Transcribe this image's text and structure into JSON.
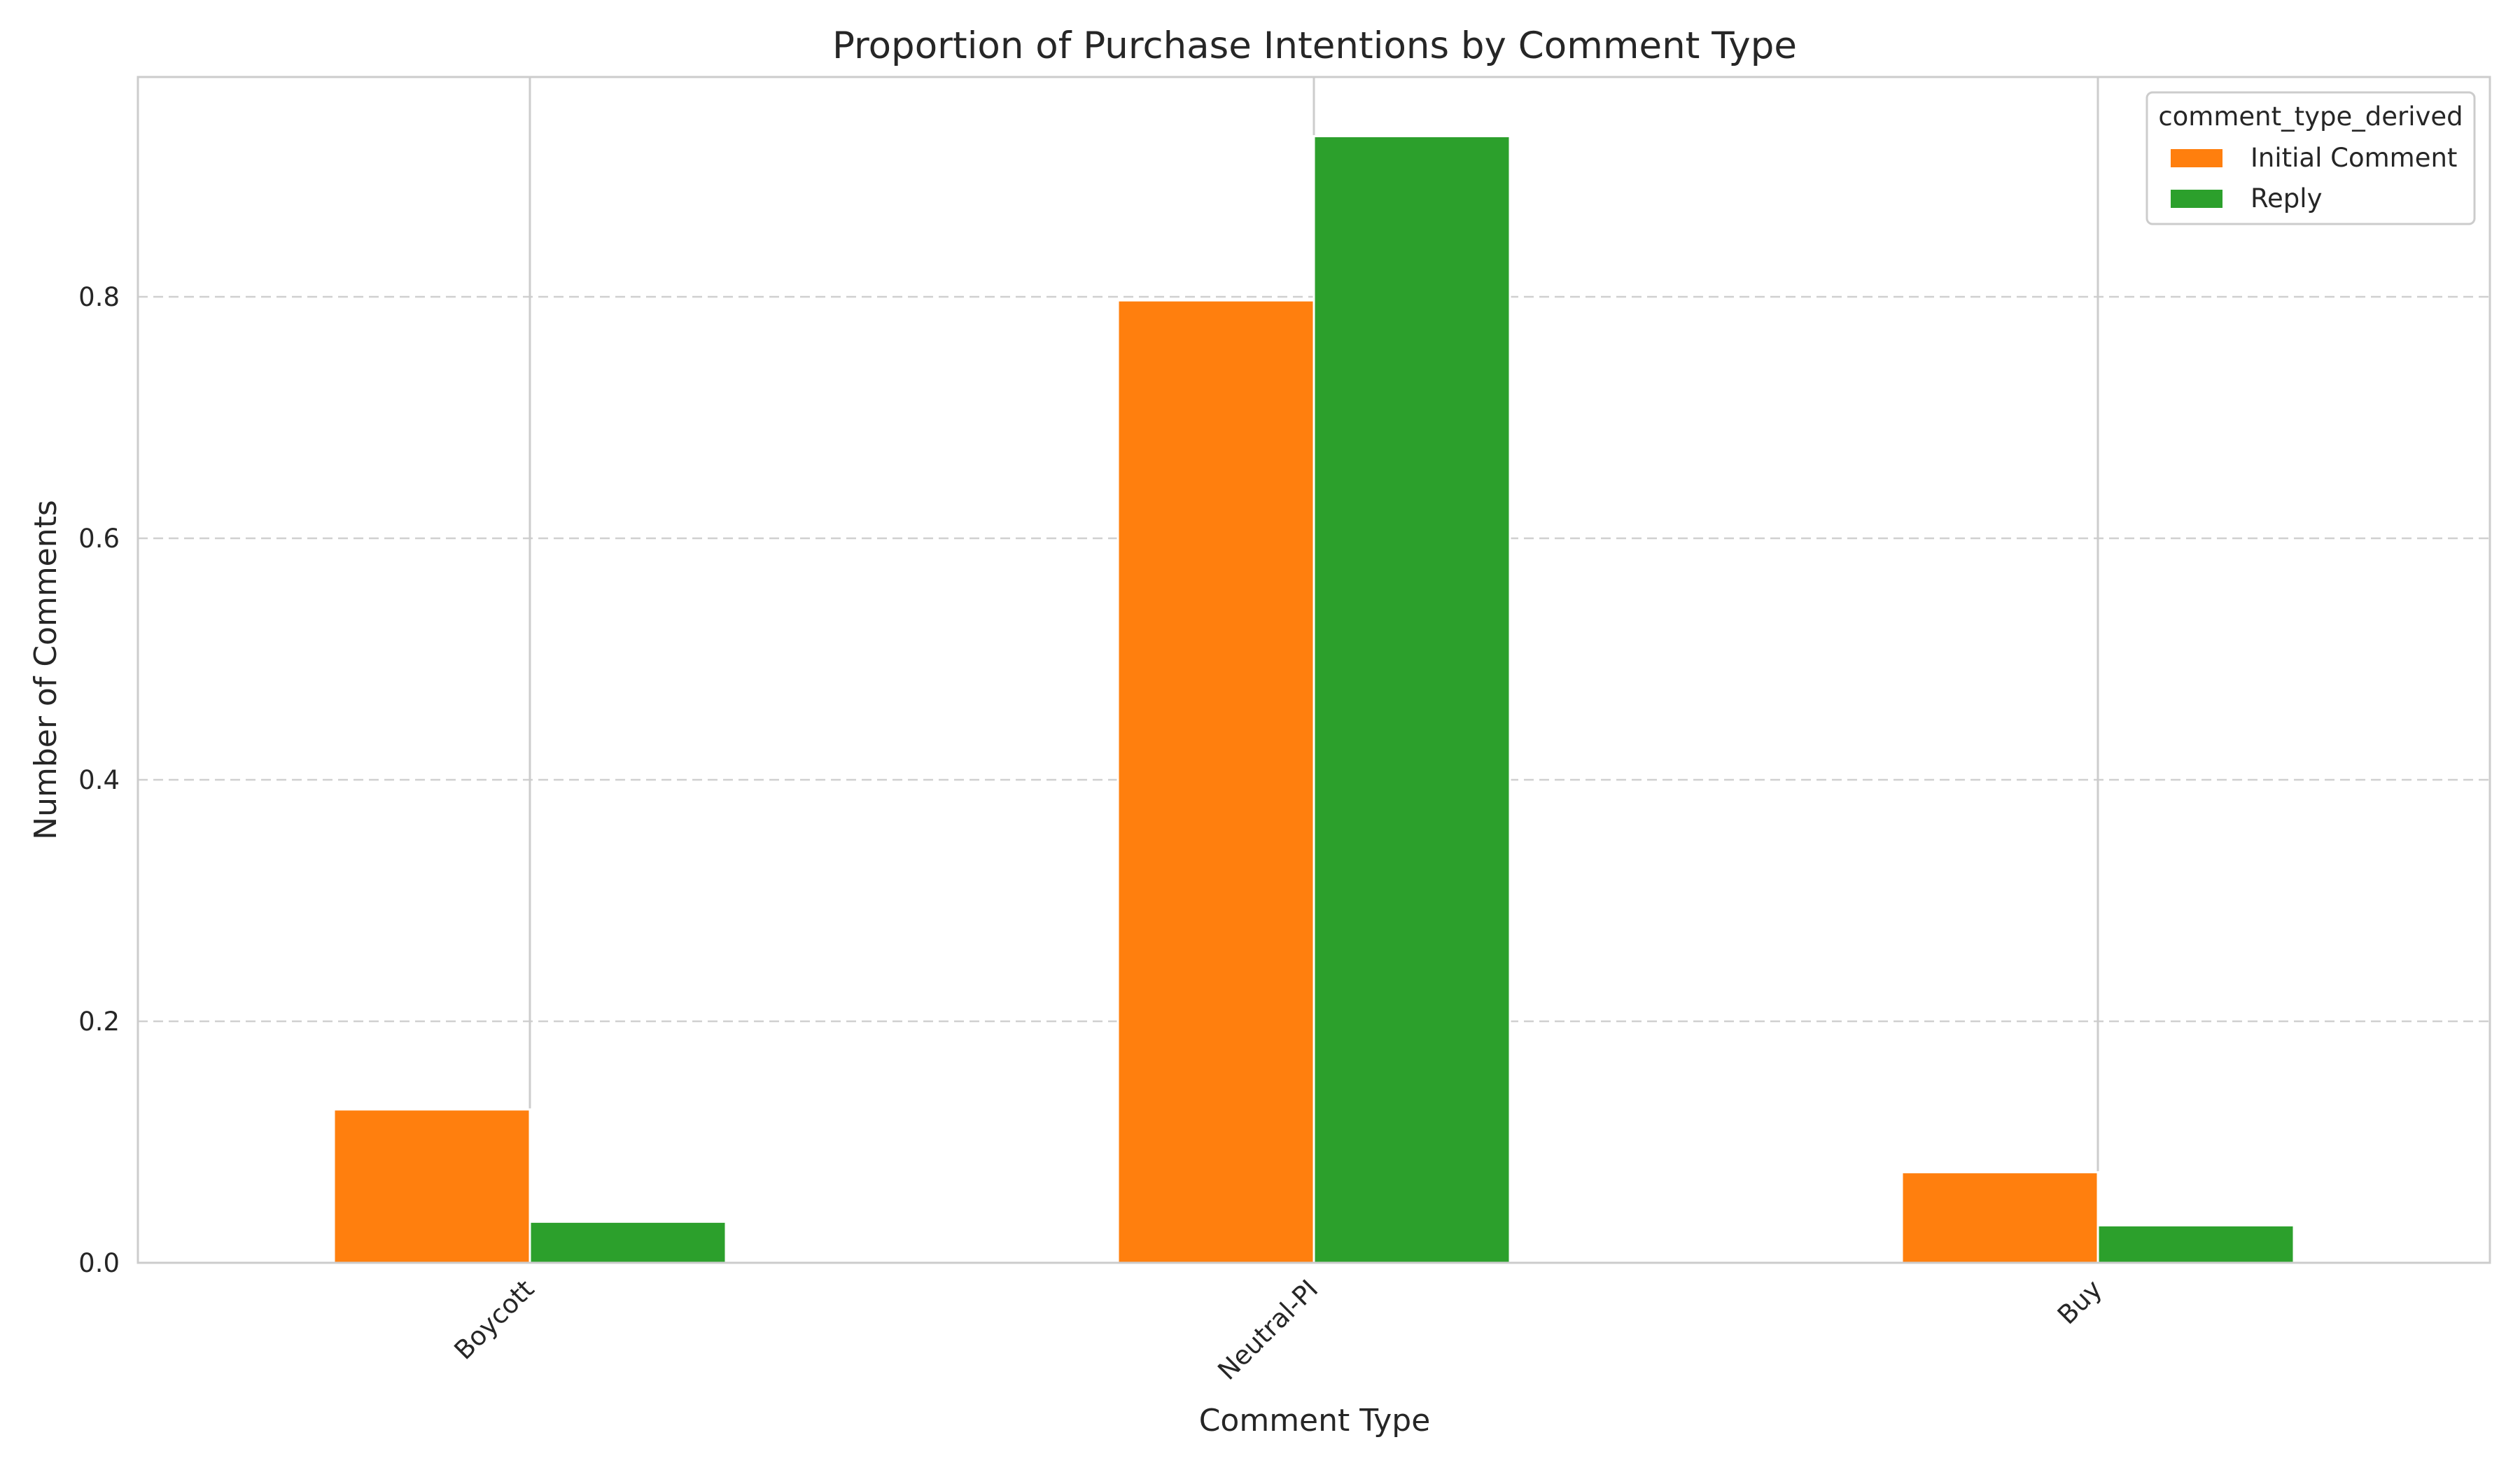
{
  "chart_data": {
    "type": "bar",
    "title": "Proportion of Purchase Intentions by Comment Type",
    "xlabel": "Comment Type",
    "ylabel": "Number of Comments",
    "categories": [
      "Boycott",
      "Neutral-PI",
      "Buy"
    ],
    "series": [
      {
        "name": "Initial Comment",
        "color": "#ff7f0e",
        "values": [
          0.127,
          0.797,
          0.075
        ]
      },
      {
        "name": "Reply",
        "color": "#2ca02c",
        "values": [
          0.034,
          0.933,
          0.031
        ]
      }
    ],
    "ylim": [
      0,
      0.982
    ],
    "yticks": [
      0.0,
      0.2,
      0.4,
      0.6,
      0.8
    ],
    "ytick_labels": [
      "0.0",
      "0.2",
      "0.4",
      "0.6",
      "0.8"
    ],
    "legend": {
      "title": "comment_type_derived",
      "placement": "top-right"
    },
    "grid": {
      "y": "dashed",
      "x": "solid"
    }
  }
}
